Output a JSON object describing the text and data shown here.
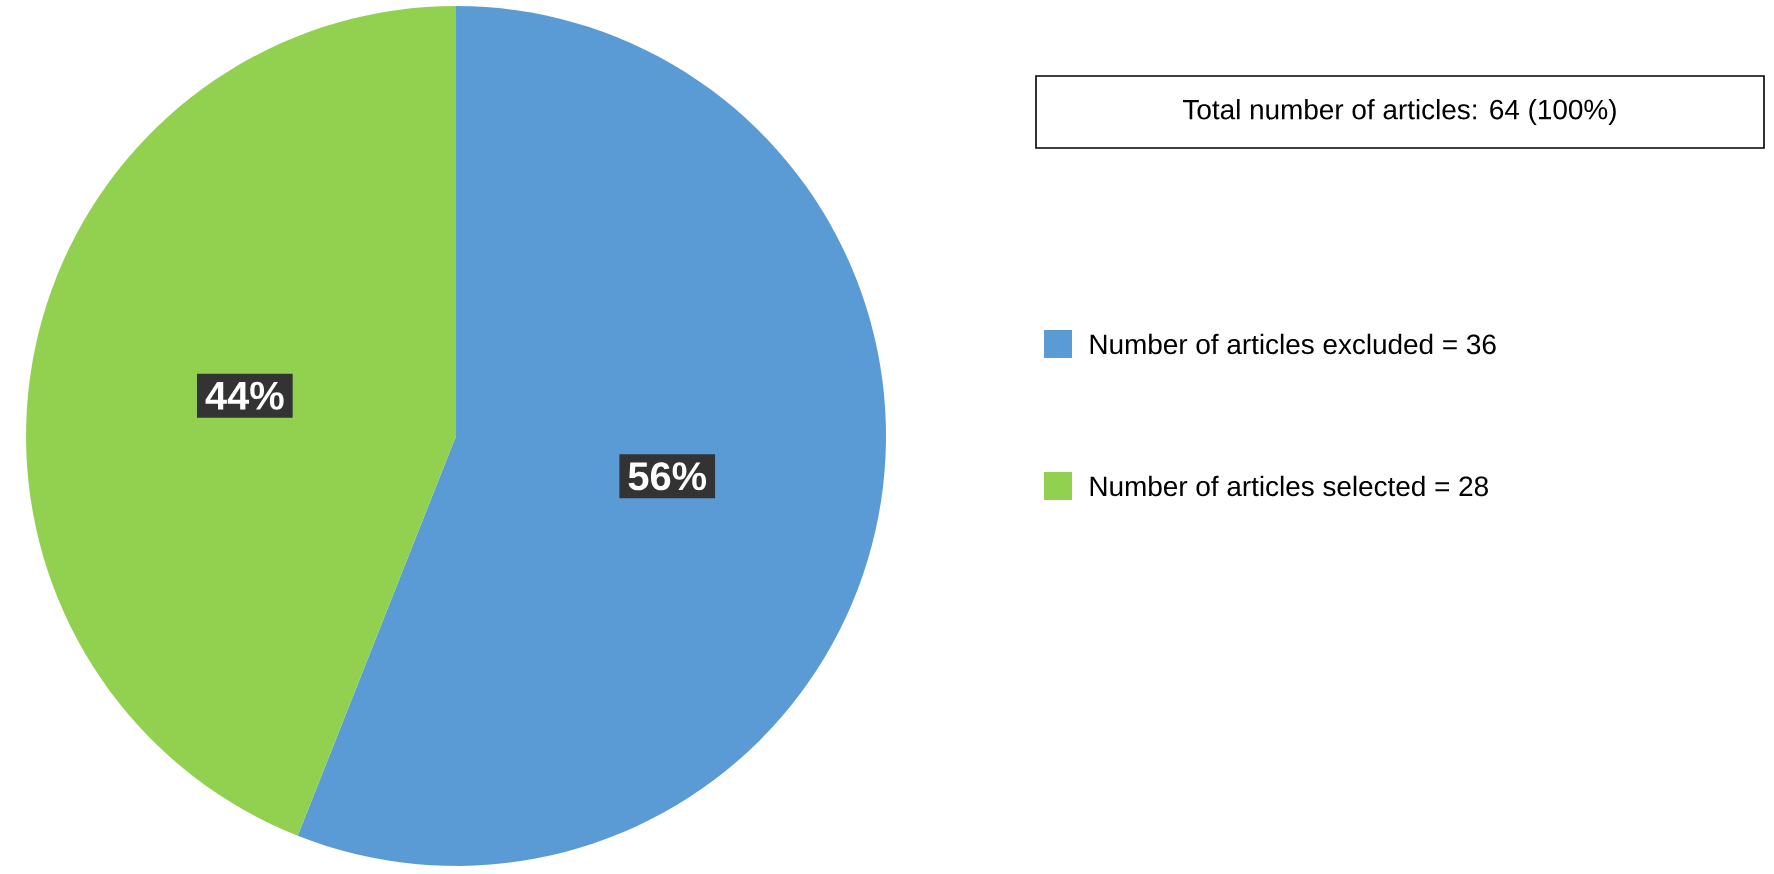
{
  "chart_data": {
    "type": "pie",
    "title": "Total number of articles: 64 (100%)",
    "categories": [
      "Number of articles excluded = 36",
      "Number of articles selected = 28"
    ],
    "values": [
      56,
      44
    ],
    "colors": [
      "#5b9bd5",
      "#92d050"
    ],
    "value_labels": [
      "56%",
      "44%"
    ],
    "legend": "right"
  }
}
